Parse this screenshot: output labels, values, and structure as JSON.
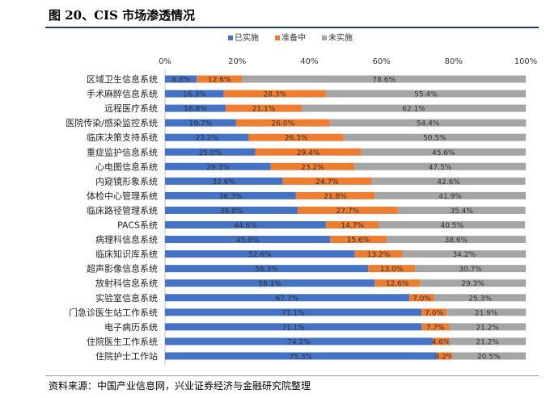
{
  "title": "图 20、CIS 市场渗透情况",
  "source": "资料来源：中国产业信息网，兴业证券经济与金融研究院整理",
  "chart_data": {
    "type": "bar",
    "orientation": "horizontal",
    "stacked": true,
    "title": "图 20、CIS 市场渗透情况",
    "xlabel": "",
    "ylabel": "",
    "xlim": [
      0,
      100
    ],
    "x_tick_labels": [
      "0%",
      "20%",
      "40%",
      "60%",
      "80%",
      "100%"
    ],
    "legend_position": "top",
    "grid": false,
    "colors": {
      "已实施": "#4472c4",
      "准备中": "#ed7d31",
      "未实施": "#a5a5a5"
    },
    "categories": [
      "区域卫生信息系统",
      "手术麻醉信息系统",
      "远程医疗系统",
      "医院传染/感染监控系统",
      "临床决策支持系统",
      "重症监护信息系统",
      "心电图信息系统",
      "内窥镜形象系统",
      "体检中心管理系统",
      "临床路径管理系统",
      "PACS系统",
      "病理科信息系统",
      "临床知识库系统",
      "超声影像信息系统",
      "放射科信息系统",
      "实验室信息系统",
      "门急诊医生站工作系统",
      "电子病历系统",
      "住院医生工作系统",
      "住院护士工作站"
    ],
    "series": [
      {
        "name": "已实施",
        "values": [
          8.8,
          16.3,
          16.8,
          19.7,
          23.2,
          25.0,
          29.3,
          32.6,
          36.3,
          36.8,
          44.6,
          45.8,
          52.6,
          56.3,
          58.1,
          67.7,
          71.1,
          71.1,
          74.2,
          75.3
        ]
      },
      {
        "name": "准备中",
        "values": [
          12.6,
          28.3,
          21.1,
          26.0,
          26.3,
          29.4,
          23.2,
          24.7,
          21.8,
          27.7,
          14.7,
          15.6,
          13.2,
          13.0,
          12.6,
          7.0,
          7.0,
          7.7,
          4.6,
          4.2
        ]
      },
      {
        "name": "未实施",
        "values": [
          78.6,
          55.4,
          62.1,
          54.4,
          50.5,
          45.6,
          47.5,
          42.6,
          41.9,
          35.4,
          40.5,
          38.6,
          34.2,
          30.7,
          29.3,
          25.3,
          21.9,
          21.2,
          21.2,
          20.5
        ]
      }
    ]
  }
}
